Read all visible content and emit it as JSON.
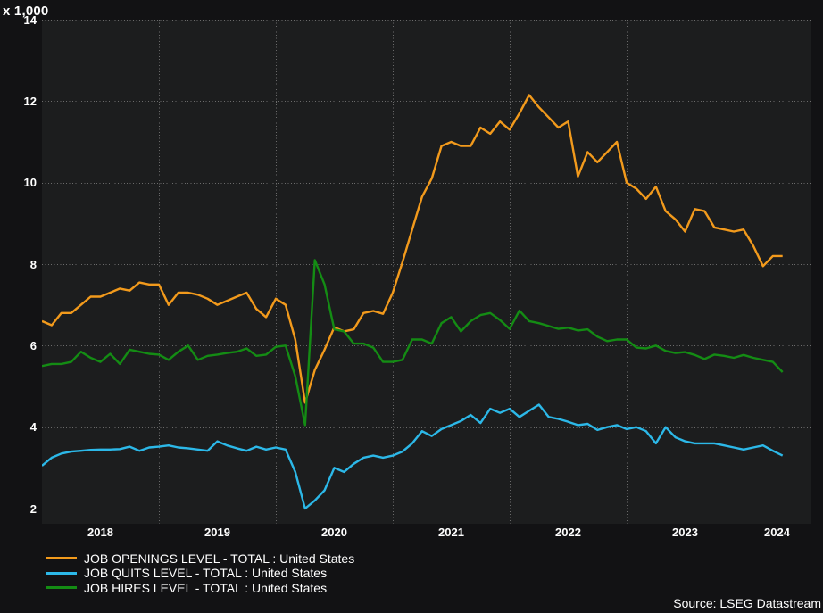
{
  "chart_data": {
    "type": "line",
    "units_label": "x 1,000",
    "source": "Source: LSEG Datastream",
    "x_unit": "month",
    "x_start": "2018-01",
    "x_end": "2024-05",
    "years": [
      "2018",
      "2019",
      "2020",
      "2021",
      "2022",
      "2023",
      "2024"
    ],
    "yticks": [
      2,
      4,
      6,
      8,
      10,
      12,
      14
    ],
    "ylim": [
      1.62,
      14
    ],
    "grid": "dotted",
    "legend_position": "bottom-left",
    "colors": {
      "background": "#121214",
      "plot_background": "#1c1d1e",
      "gridline": "#7a7a7a",
      "text": "#ffffff"
    },
    "series": [
      {
        "key": "job-openings",
        "name": "JOB OPENINGS LEVEL - TOTAL : United States",
        "color": "#F29A1C",
        "values": [
          6.6,
          6.5,
          6.8,
          6.8,
          7.0,
          7.2,
          7.2,
          7.3,
          7.4,
          7.35,
          7.55,
          7.5,
          7.5,
          7.0,
          7.3,
          7.3,
          7.25,
          7.15,
          7.0,
          7.1,
          7.2,
          7.3,
          6.9,
          6.7,
          7.15,
          7.0,
          6.15,
          4.6,
          5.4,
          5.9,
          6.45,
          6.35,
          6.4,
          6.8,
          6.85,
          6.78,
          7.3,
          8.05,
          8.85,
          9.65,
          10.1,
          10.9,
          11.0,
          10.9,
          10.9,
          11.35,
          11.2,
          11.5,
          11.3,
          11.7,
          12.15,
          11.85,
          11.6,
          11.35,
          11.5,
          10.15,
          10.75,
          10.5,
          10.75,
          11.0,
          10.0,
          9.85,
          9.6,
          9.9,
          9.3,
          9.1,
          8.8,
          9.35,
          9.3,
          8.9,
          8.85,
          8.8,
          8.85,
          8.45,
          7.95,
          8.2,
          8.2
        ]
      },
      {
        "key": "job-quits",
        "name": "JOB QUITS LEVEL - TOTAL : United States",
        "color": "#2CB8E8",
        "values": [
          3.05,
          3.25,
          3.35,
          3.4,
          3.42,
          3.44,
          3.45,
          3.45,
          3.46,
          3.52,
          3.42,
          3.5,
          3.52,
          3.55,
          3.5,
          3.48,
          3.45,
          3.42,
          3.65,
          3.55,
          3.48,
          3.42,
          3.52,
          3.45,
          3.5,
          3.45,
          2.9,
          2.0,
          2.2,
          2.45,
          3.0,
          2.9,
          3.1,
          3.25,
          3.3,
          3.25,
          3.3,
          3.4,
          3.6,
          3.9,
          3.78,
          3.95,
          4.05,
          4.15,
          4.3,
          4.1,
          4.45,
          4.35,
          4.45,
          4.25,
          4.4,
          4.55,
          4.25,
          4.2,
          4.13,
          4.05,
          4.08,
          3.93,
          4.0,
          4.05,
          3.95,
          4.0,
          3.9,
          3.6,
          4.0,
          3.75,
          3.65,
          3.6,
          3.6,
          3.6,
          3.55,
          3.5,
          3.45,
          3.5,
          3.55,
          3.42,
          3.3
        ]
      },
      {
        "key": "job-hires",
        "name": "JOB HIRES LEVEL - TOTAL : United States",
        "color": "#148C14",
        "values": [
          5.5,
          5.55,
          5.55,
          5.6,
          5.85,
          5.7,
          5.6,
          5.8,
          5.55,
          5.9,
          5.85,
          5.8,
          5.78,
          5.65,
          5.85,
          6.0,
          5.65,
          5.75,
          5.78,
          5.82,
          5.85,
          5.93,
          5.75,
          5.78,
          5.97,
          6.0,
          5.25,
          4.05,
          8.1,
          7.5,
          6.4,
          6.35,
          6.05,
          6.05,
          5.95,
          5.6,
          5.6,
          5.65,
          6.15,
          6.15,
          6.05,
          6.55,
          6.7,
          6.35,
          6.6,
          6.75,
          6.8,
          6.63,
          6.41,
          6.86,
          6.6,
          6.55,
          6.48,
          6.41,
          6.44,
          6.37,
          6.4,
          6.22,
          6.11,
          6.15,
          6.15,
          5.95,
          5.93,
          6.0,
          5.87,
          5.82,
          5.84,
          5.77,
          5.67,
          5.78,
          5.75,
          5.7,
          5.77,
          5.7,
          5.65,
          5.6,
          5.35
        ]
      }
    ]
  }
}
